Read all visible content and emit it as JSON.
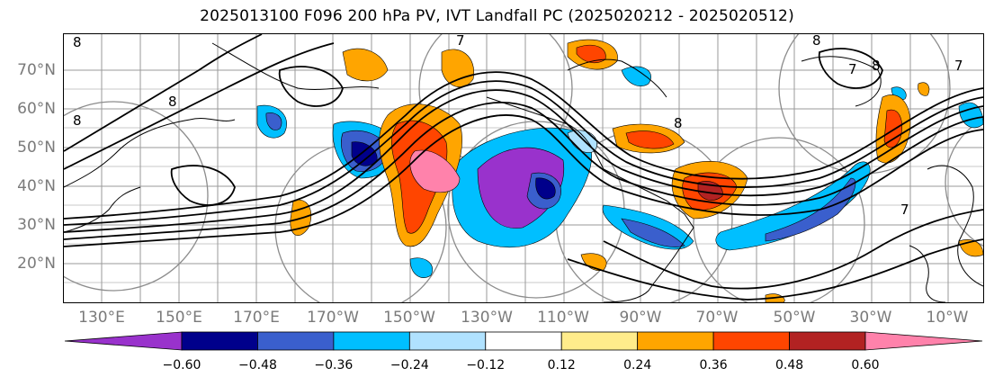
{
  "title": "2025013100 F096 200 hPa PV, IVT Landfall PC (2025020212 - 2025020512)",
  "map": {
    "lat_labels": [
      "70°N",
      "60°N",
      "50°N",
      "40°N",
      "30°N",
      "20°N"
    ],
    "lon_labels": [
      "130°E",
      "150°E",
      "170°E",
      "170°W",
      "150°W",
      "130°W",
      "110°W",
      "90°W",
      "70°W",
      "50°W",
      "30°W",
      "10°W"
    ],
    "contour_labels": [
      "8",
      "8",
      "8",
      "8",
      "8",
      "7",
      "7",
      "8",
      "7",
      "7"
    ]
  },
  "colorbar": {
    "ticks": [
      "−0.60",
      "−0.48",
      "−0.36",
      "−0.24",
      "−0.12",
      "0.12",
      "0.24",
      "0.36",
      "0.48",
      "0.60"
    ],
    "colors": [
      "#9932cc",
      "#00008b",
      "#3a5fcd",
      "#00bfff",
      "#b0e2ff",
      "#ffffff",
      "#ffec8b",
      "#ffa500",
      "#ff4500",
      "#b22222",
      "#ff82ab"
    ]
  }
}
